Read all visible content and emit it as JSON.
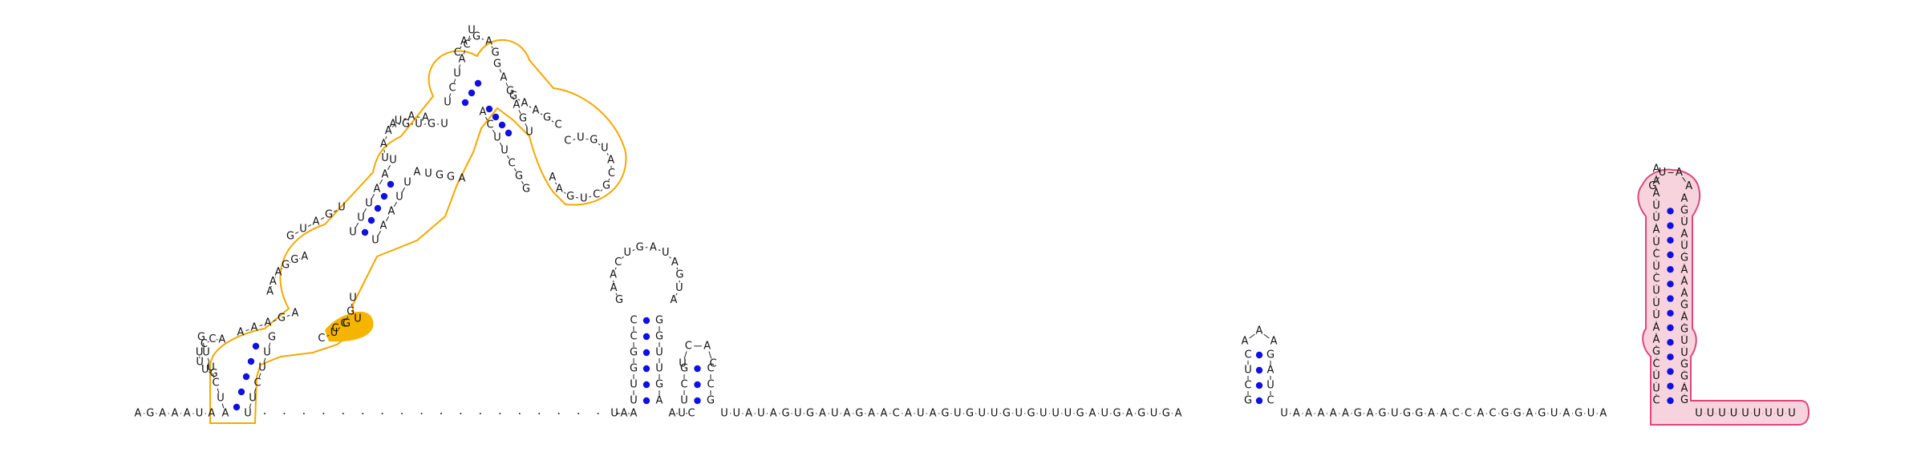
{
  "colors": {
    "pair_dot": "#1010e0",
    "backbone": "#222222",
    "yellow_outline": "#f5a800",
    "yellow_fill": "#ffffff",
    "yellow_highlight": "#f5b400",
    "pink_outline": "#e0457b",
    "pink_fill": "#f7d3dd"
  },
  "strands": {
    "left_tail": "AGAAAUA",
    "dashed_gap_count": 18,
    "hp1_stem_5p": "UUGGCC",
    "hp1_loop": "GAACUGAUAGUA",
    "hp1_stem_3p": "GGUUGA",
    "hp2_stem_5p": "UCGG",
    "hp2_loop": "UCAC",
    "hp2_stem_3p": "CCG",
    "linker_a": "UUAUAGUGAUAGAACAUAGUGUUGUGUUUGAUGAGUGA",
    "hp3_stem_5p": "GCUC",
    "hp3_loop": "AAA",
    "hp3_stem_3p": "GAUC",
    "linker_b": "UAAAAAGAGUGGAACCACGGAGUAGUA",
    "term_stem_5p": "CUUCGAAUUUCUCUAUUAAA",
    "term_loop": "GUAA",
    "term_stem_3p": "AGUAUGAAAGAGUUGGAG",
    "right_tail": "UUUUUUUUU",
    "big_loop_1": "CUCGU",
    "big_loop_2": "AGCUAUUGGAGAAG",
    "top_loop": "CAGAG",
    "right_loop": "CUGUACGCUGAA"
  },
  "highlight_letters": "CGU"
}
